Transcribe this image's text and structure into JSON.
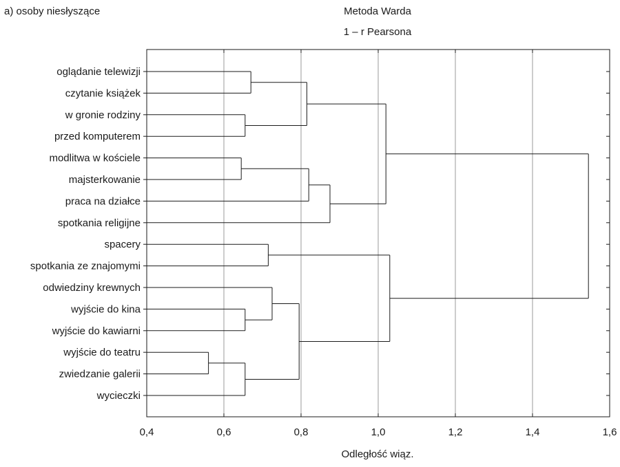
{
  "corner_label": "a) osoby niesłyszące",
  "chart_data": {
    "type": "dendrogram",
    "title": "Metoda Warda",
    "subtitle": "1 – r Pearsona",
    "xlabel": "Odległość wiąz.",
    "ylabel": "",
    "xlim": [
      0.4,
      1.6
    ],
    "x_ticks": [
      "0,4",
      "0,6",
      "0,8",
      "1,0",
      "1,2",
      "1,4",
      "1,6"
    ],
    "x_tick_values": [
      0.4,
      0.6,
      0.8,
      1.0,
      1.2,
      1.4,
      1.6
    ],
    "grid": "vertical",
    "leaves": [
      "oglądanie telewizji",
      "czytanie książek",
      "w gronie rodziny",
      "przed komputerem",
      "modlitwa w kościele",
      "majsterkowanie",
      "praca na działce",
      "spotkania religijne",
      "spacery",
      "spotkania ze znajomymi",
      "odwiedziny krewnych",
      "wyjście do kina",
      "wyjście do kawiarni",
      "wyjście do teatru",
      "zwiedzanie galerii",
      "wycieczki"
    ],
    "merges": [
      {
        "a": "L0",
        "b": "L1",
        "height": 0.67
      },
      {
        "a": "L2",
        "b": "L3",
        "height": 0.655
      },
      {
        "a": "M0",
        "b": "M1",
        "height": 0.815
      },
      {
        "a": "L4",
        "b": "L5",
        "height": 0.645
      },
      {
        "a": "M3",
        "b": "L6",
        "height": 0.82
      },
      {
        "a": "M4",
        "b": "L7",
        "height": 0.875
      },
      {
        "a": "M2",
        "b": "M5",
        "height": 1.02
      },
      {
        "a": "L8",
        "b": "L9",
        "height": 0.715
      },
      {
        "a": "L11",
        "b": "L12",
        "height": 0.655
      },
      {
        "a": "L10",
        "b": "M8",
        "height": 0.725
      },
      {
        "a": "L13",
        "b": "L14",
        "height": 0.56
      },
      {
        "a": "M10",
        "b": "L15",
        "height": 0.655
      },
      {
        "a": "M9",
        "b": "M11",
        "height": 0.795
      },
      {
        "a": "M7",
        "b": "M12",
        "height": 1.03
      },
      {
        "a": "M6",
        "b": "M13",
        "height": 1.545
      }
    ]
  }
}
